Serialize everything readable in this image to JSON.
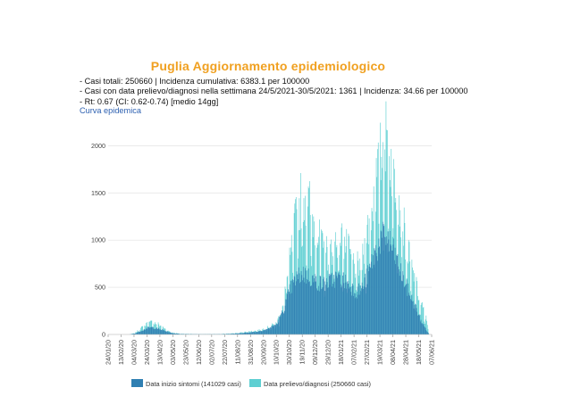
{
  "header": {
    "title": "Puglia Aggiornamento epidemiologico",
    "lines": [
      "- Casi totali: 250660 | Incidenza cumulativa: 6383.1 per 100000",
      "- Casi con data prelievo/diagnosi nella settimana 24/5/2021-30/5/2021: 1361 | Incidenza: 34.66 per 100000",
      "- Rt: 0.67 (CI: 0.62-0.74) [medio 14gg]"
    ],
    "subtitle": "Curva epidemica"
  },
  "colors": {
    "title": "#f0a020",
    "series_onset": "#2f7fb2",
    "series_diagnosis": "#5ecfd2"
  },
  "chart_data": {
    "type": "bar",
    "stacked": false,
    "ylim": [
      0,
      2250
    ],
    "yticks": [
      0,
      500,
      1000,
      1500,
      2000
    ],
    "x_tick_labels": [
      "24/01/20",
      "13/02/20",
      "04/03/20",
      "24/03/20",
      "13/04/20",
      "03/05/20",
      "23/05/20",
      "12/06/20",
      "02/07/20",
      "22/07/20",
      "11/08/20",
      "31/08/20",
      "20/09/20",
      "10/10/20",
      "30/10/20",
      "19/11/20",
      "09/12/20",
      "29/12/20",
      "18/01/21",
      "07/02/21",
      "27/02/21",
      "19/03/21",
      "08/04/21",
      "28/04/21",
      "18/05/21",
      "07/06/21"
    ],
    "x_start": "2020-01-24",
    "x_end": "2021-06-07",
    "series": [
      {
        "name": "Data inizio sintomi (141029 casi)",
        "color": "#2f7fb2",
        "daily_profile": [
          [
            "2020-02-25",
            0
          ],
          [
            "2020-03-05",
            10
          ],
          [
            "2020-03-15",
            40
          ],
          [
            "2020-03-25",
            70
          ],
          [
            "2020-04-01",
            75
          ],
          [
            "2020-04-10",
            60
          ],
          [
            "2020-04-20",
            40
          ],
          [
            "2020-05-01",
            15
          ],
          [
            "2020-05-15",
            5
          ],
          [
            "2020-06-15",
            2
          ],
          [
            "2020-07-15",
            3
          ],
          [
            "2020-08-10",
            10
          ],
          [
            "2020-08-25",
            20
          ],
          [
            "2020-09-10",
            30
          ],
          [
            "2020-09-25",
            55
          ],
          [
            "2020-10-10",
            110
          ],
          [
            "2020-10-20",
            250
          ],
          [
            "2020-10-31",
            480
          ],
          [
            "2020-11-10",
            600
          ],
          [
            "2020-11-20",
            650
          ],
          [
            "2020-12-01",
            600
          ],
          [
            "2020-12-10",
            560
          ],
          [
            "2020-12-20",
            530
          ],
          [
            "2020-12-31",
            560
          ],
          [
            "2021-01-10",
            600
          ],
          [
            "2021-01-20",
            580
          ],
          [
            "2021-01-31",
            520
          ],
          [
            "2021-02-10",
            450
          ],
          [
            "2021-02-20",
            500
          ],
          [
            "2021-03-01",
            650
          ],
          [
            "2021-03-10",
            850
          ],
          [
            "2021-03-20",
            1000
          ],
          [
            "2021-03-28",
            1050
          ],
          [
            "2021-04-05",
            930
          ],
          [
            "2021-04-12",
            820
          ],
          [
            "2021-04-20",
            650
          ],
          [
            "2021-04-30",
            480
          ],
          [
            "2021-05-10",
            330
          ],
          [
            "2021-05-20",
            160
          ],
          [
            "2021-05-30",
            40
          ],
          [
            "2021-06-02",
            5
          ]
        ]
      },
      {
        "name": "Data prelievo/diagnosi (250660 casi)",
        "color": "#5ecfd2",
        "daily_profile": [
          [
            "2020-02-25",
            0
          ],
          [
            "2020-03-05",
            15
          ],
          [
            "2020-03-15",
            70
          ],
          [
            "2020-03-25",
            120
          ],
          [
            "2020-04-01",
            130
          ],
          [
            "2020-04-10",
            110
          ],
          [
            "2020-04-20",
            60
          ],
          [
            "2020-05-01",
            20
          ],
          [
            "2020-05-15",
            8
          ],
          [
            "2020-06-15",
            3
          ],
          [
            "2020-07-15",
            5
          ],
          [
            "2020-08-10",
            15
          ],
          [
            "2020-08-25",
            30
          ],
          [
            "2020-09-10",
            40
          ],
          [
            "2020-09-25",
            70
          ],
          [
            "2020-10-10",
            120
          ],
          [
            "2020-10-20",
            300
          ],
          [
            "2020-10-31",
            800
          ],
          [
            "2020-11-10",
            1300
          ],
          [
            "2020-11-20",
            1500
          ],
          [
            "2020-12-01",
            1350
          ],
          [
            "2020-12-10",
            1100
          ],
          [
            "2020-12-20",
            900
          ],
          [
            "2020-12-31",
            850
          ],
          [
            "2021-01-10",
            1050
          ],
          [
            "2021-01-20",
            1000
          ],
          [
            "2021-01-31",
            850
          ],
          [
            "2021-02-10",
            700
          ],
          [
            "2021-02-20",
            800
          ],
          [
            "2021-03-01",
            1150
          ],
          [
            "2021-03-10",
            1500
          ],
          [
            "2021-03-20",
            1900
          ],
          [
            "2021-03-28",
            2050
          ],
          [
            "2021-04-05",
            1850
          ],
          [
            "2021-04-12",
            1650
          ],
          [
            "2021-04-20",
            1300
          ],
          [
            "2021-04-30",
            900
          ],
          [
            "2021-05-10",
            600
          ],
          [
            "2021-05-20",
            350
          ],
          [
            "2021-05-30",
            150
          ],
          [
            "2021-06-02",
            30
          ]
        ]
      }
    ],
    "legend_position": "bottom"
  }
}
